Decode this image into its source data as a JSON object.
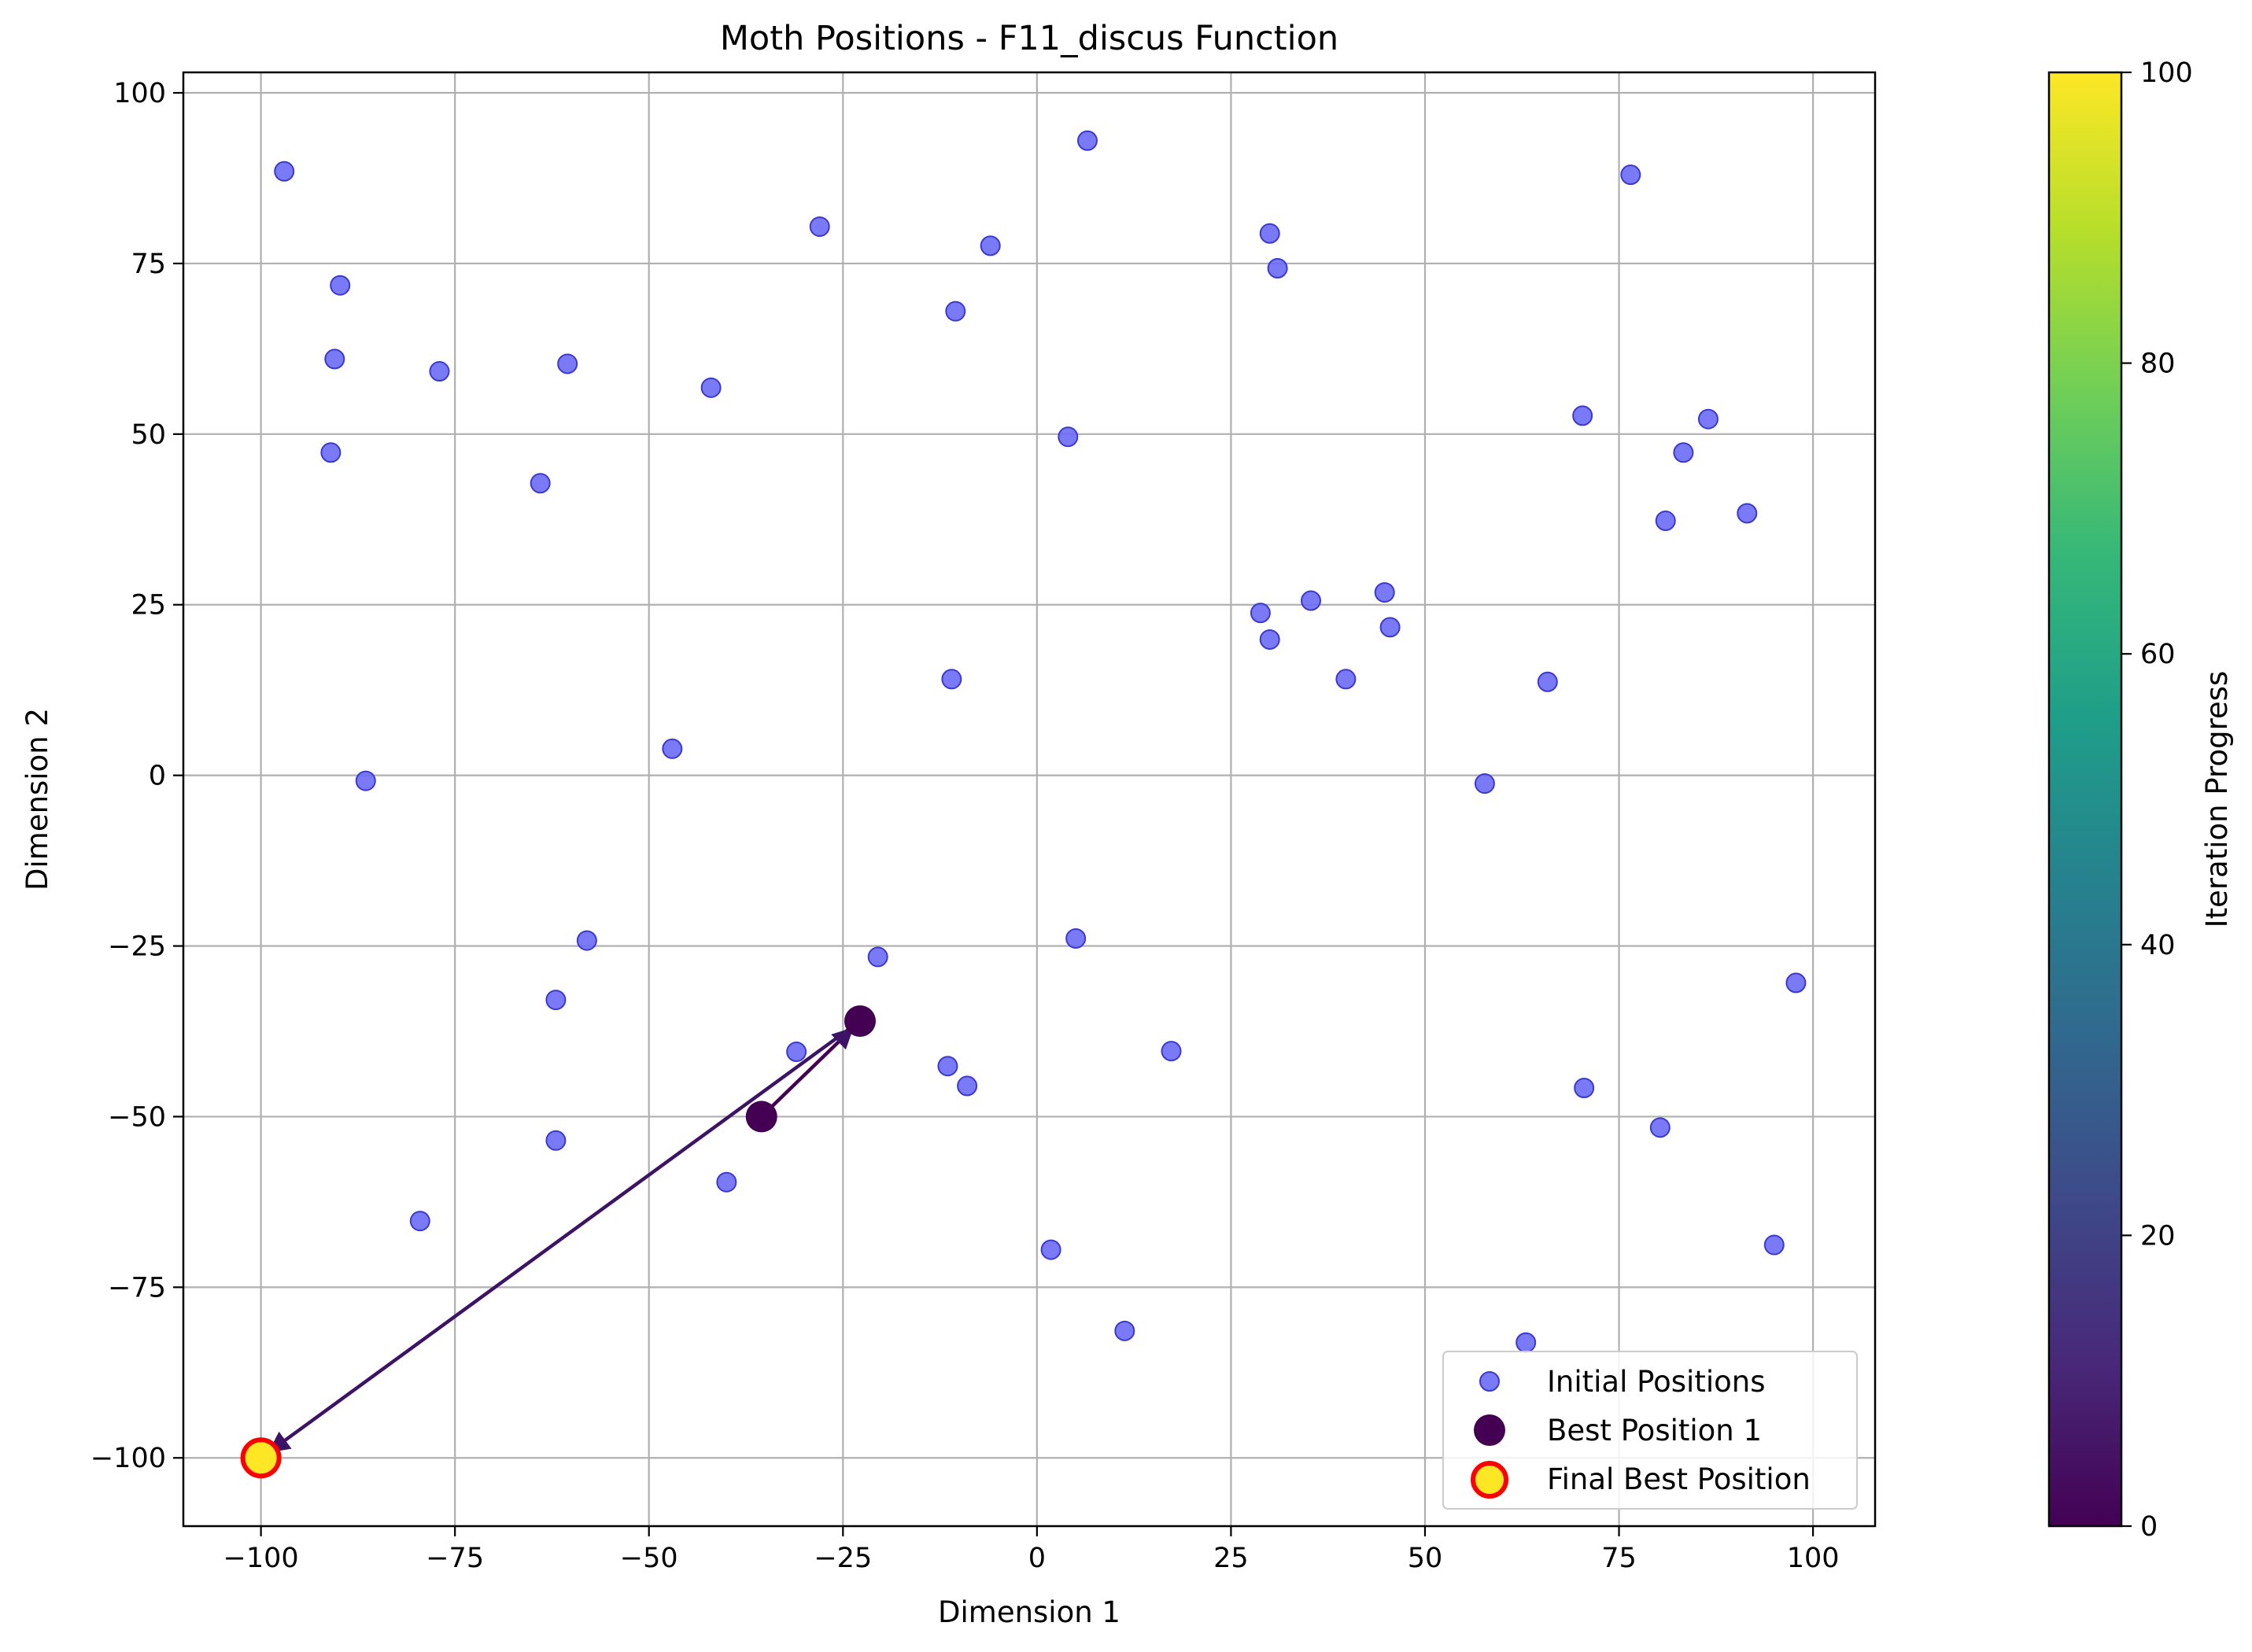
{
  "chart_data": {
    "type": "scatter",
    "title": "Moth Positions - F11_discus Function",
    "xlabel": "Dimension 1",
    "ylabel": "Dimension 2",
    "xlim": [
      -110,
      108
    ],
    "ylim": [
      -110,
      103
    ],
    "grid": true,
    "x_ticks": [
      -100,
      -75,
      -50,
      -25,
      0,
      25,
      50,
      75,
      100
    ],
    "y_ticks": [
      -100,
      -75,
      -50,
      -25,
      0,
      25,
      50,
      75,
      100
    ],
    "x_tick_labels": [
      "−100",
      "−75",
      "−50",
      "−25",
      "0",
      "25",
      "50",
      "75",
      "100"
    ],
    "y_tick_labels": [
      "−100",
      "−75",
      "−50",
      "−25",
      "0",
      "25",
      "50",
      "75",
      "100"
    ],
    "series": [
      {
        "name": "Initial Positions",
        "color": "#6b6bf5",
        "points": [
          [
            -97,
            88.5
          ],
          [
            -89.8,
            71.8
          ],
          [
            -90.5,
            61
          ],
          [
            -91,
            47.3
          ],
          [
            -77,
            59.2
          ],
          [
            -60.5,
            60.3
          ],
          [
            -64,
            42.8
          ],
          [
            -42,
            56.8
          ],
          [
            -28,
            80.4
          ],
          [
            -6,
            77.6
          ],
          [
            -10.5,
            68
          ],
          [
            6.5,
            93
          ],
          [
            4,
            49.6
          ],
          [
            30,
            79.4
          ],
          [
            31,
            74.3
          ],
          [
            76.5,
            88
          ],
          [
            70.3,
            52.7
          ],
          [
            86.5,
            52.2
          ],
          [
            83.3,
            47.3
          ],
          [
            81,
            37.3
          ],
          [
            91.5,
            38.4
          ],
          [
            28.8,
            23.8
          ],
          [
            35.3,
            25.6
          ],
          [
            44.8,
            26.8
          ],
          [
            45.5,
            21.7
          ],
          [
            30,
            19.9
          ],
          [
            39.8,
            14.1
          ],
          [
            65.8,
            13.7
          ],
          [
            -11,
            14.1
          ],
          [
            -47,
            3.9
          ],
          [
            -86.5,
            -0.8
          ],
          [
            57.7,
            -1.2
          ],
          [
            -58,
            -24.2
          ],
          [
            -62,
            -32.9
          ],
          [
            -20.5,
            -26.6
          ],
          [
            5,
            -23.9
          ],
          [
            -31,
            -40.5
          ],
          [
            -11.5,
            -42.6
          ],
          [
            -9,
            -45.5
          ],
          [
            17.3,
            -40.4
          ],
          [
            97.8,
            -30.4
          ],
          [
            70.5,
            -45.8
          ],
          [
            80.3,
            -51.6
          ],
          [
            -62,
            -53.5
          ],
          [
            -40,
            -59.6
          ],
          [
            -79.5,
            -65.3
          ],
          [
            1.8,
            -69.5
          ],
          [
            95,
            -68.8
          ],
          [
            11.3,
            -81.4
          ],
          [
            63,
            -83.1
          ]
        ]
      },
      {
        "name": "Best Position 1",
        "color": "#440154",
        "points": [
          [
            -35.5,
            -50
          ],
          [
            -22.8,
            -36
          ]
        ]
      },
      {
        "name": "Final Best Position",
        "color": "#fde725",
        "edge_color": "#ff0000",
        "points": [
          [
            -100,
            -100
          ]
        ]
      }
    ],
    "arrows": [
      {
        "from": [
          -35.5,
          -50
        ],
        "to": [
          -22.8,
          -36
        ],
        "color": "#440154"
      },
      {
        "from": [
          -22.8,
          -36
        ],
        "to": [
          -100,
          -100
        ],
        "color": "#3d1366"
      }
    ],
    "legend_position": "lower-right",
    "colorbar": {
      "label": "Iteration Progress",
      "range": [
        0,
        100
      ],
      "ticks": [
        0,
        20,
        40,
        60,
        80,
        100
      ],
      "colormap": "viridis",
      "stops": [
        "#440154",
        "#482878",
        "#3e4989",
        "#31688e",
        "#26828e",
        "#1f9e89",
        "#35b779",
        "#6ece58",
        "#b5de2b",
        "#fde725"
      ]
    }
  }
}
